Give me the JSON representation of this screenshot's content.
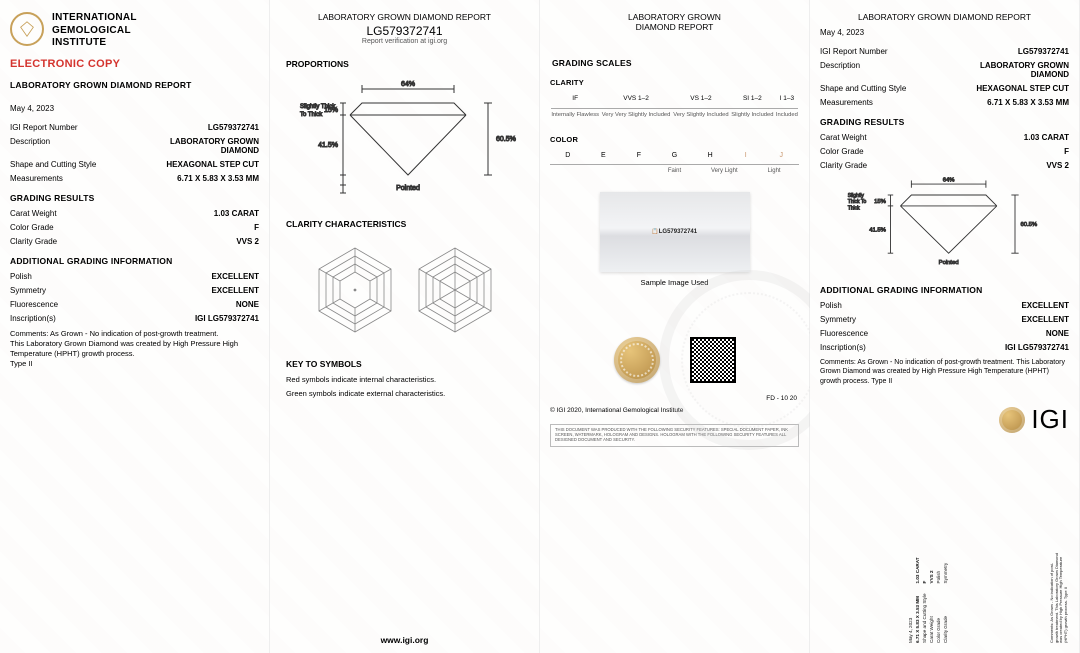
{
  "institute": {
    "name_line1": "INTERNATIONAL",
    "name_line2": "GEMOLOGICAL",
    "name_line3": "INSTITUTE",
    "electronic_copy": "ELECTRONIC COPY",
    "igi_label": "IGI"
  },
  "report": {
    "title": "LABORATORY GROWN DIAMOND REPORT",
    "title_short_l1": "LABORATORY GROWN",
    "title_short_l2": "DIAMOND REPORT",
    "date": "May 4, 2023",
    "number_label": "IGI Report Number",
    "number": "LG579372741",
    "verify_text": "Report verification at igi.org",
    "footer_url": "www.igi.org",
    "copyright": "© IGI 2020, International Gemological Institute",
    "fd": "FD - 10 20",
    "disclaimer": "THIS DOCUMENT WAS PRODUCED WITH THE FOLLOWING SECURITY FEATURES: SPECIAL DOCUMENT PAPER, INK SCREEN, WATERMARK, HOLOGRAM AND DESIGNS. HOLOGRAM WITH THE FOLLOWING SECURITY FEATURES ALL DESIGNED DOCUMENT AND SECURITY.",
    "sample_caption": "Sample Image Used",
    "sample_inscription": "LG579372741"
  },
  "fields": {
    "description_label": "Description",
    "description": "LABORATORY GROWN DIAMOND",
    "shape_label": "Shape and Cutting Style",
    "shape": "HEXAGONAL STEP CUT",
    "measurements_label": "Measurements",
    "measurements": "6.71 X 5.83 X 3.53 MM",
    "grading_results_title": "GRADING RESULTS",
    "carat_label": "Carat Weight",
    "carat": "1.03 CARAT",
    "color_label": "Color Grade",
    "color": "F",
    "clarity_label": "Clarity Grade",
    "clarity": "VVS 2",
    "additional_title": "ADDITIONAL GRADING INFORMATION",
    "polish_label": "Polish",
    "polish": "EXCELLENT",
    "symmetry_label": "Symmetry",
    "symmetry": "EXCELLENT",
    "fluorescence_label": "Fluorescence",
    "fluorescence": "NONE",
    "inscription_label": "Inscription(s)",
    "inscription": "IGI LG579372741",
    "comments": "Comments: As Grown - No indication of post-growth treatment.\nThis Laboratory Grown Diamond was created by High Pressure High Temperature (HPHT) growth process.\nType II"
  },
  "panel2": {
    "proportions_title": "PROPORTIONS",
    "clarity_char_title": "CLARITY CHARACTERISTICS",
    "key_title": "KEY TO SYMBOLS",
    "key_line1": "Red symbols indicate internal characteristics.",
    "key_line2": "Green symbols indicate external characteristics.",
    "diagram": {
      "table_pct": "64%",
      "crown_pct": "15%",
      "pavilion_pct": "41.5%",
      "depth_pct": "60.5%",
      "girdle": "Slightly Thick To Thick",
      "culet": "Pointed",
      "stroke": "#333333",
      "text_color": "#222222"
    }
  },
  "panel3": {
    "grading_scales_title": "GRADING SCALES",
    "clarity_title": "CLARITY",
    "color_title": "COLOR",
    "clarity_scale": {
      "headers": [
        "IF",
        "VVS 1–2",
        "VS 1–2",
        "SI 1–2",
        "I 1–3"
      ],
      "descs": [
        "Internally Flawless",
        "Very Very Slightly Included",
        "Very Slightly Included",
        "Slightly Included",
        "Included"
      ]
    },
    "color_scale": {
      "letters": [
        "D",
        "E",
        "F",
        "G",
        "H",
        "I",
        "J"
      ],
      "highlight_start": 5,
      "ranges": [
        "",
        "",
        "Faint",
        "Very Light",
        "Light"
      ]
    }
  },
  "colors": {
    "red": "#d4342e",
    "gold": "#c8a15a",
    "text": "#111111",
    "muted": "#555555",
    "line": "#aaaaaa"
  }
}
